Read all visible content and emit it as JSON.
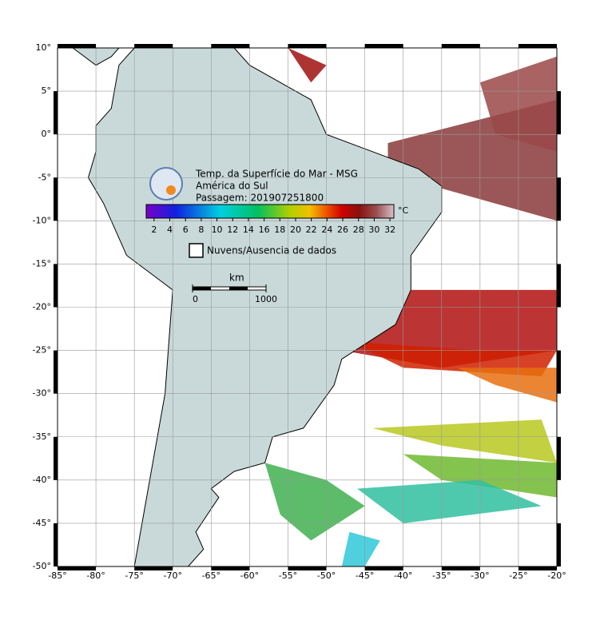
{
  "map": {
    "title": "Temp. da Superfície do Mar - MSG",
    "subtitle": "América do Sul",
    "pass": "Passagem: 201907251800",
    "colorbar": {
      "unit": "°C",
      "range": [
        1,
        32.5
      ],
      "ticks": [
        2,
        4,
        6,
        8,
        10,
        12,
        14,
        16,
        18,
        20,
        22,
        24,
        26,
        28,
        30,
        32
      ]
    },
    "legend": "Nuvens/Ausencia de dados",
    "scale": {
      "label": "km",
      "ticks": [
        0,
        1000
      ]
    },
    "lon_range": [
      -85,
      -20
    ],
    "lat_range": [
      10,
      -50
    ],
    "lon_ticks": [
      {
        "value": -85,
        "label": "-85°"
      },
      {
        "value": -80,
        "label": "-80°"
      },
      {
        "value": -75,
        "label": "-75°"
      },
      {
        "value": -70,
        "label": "-70°"
      },
      {
        "value": -65,
        "label": "-65°"
      },
      {
        "value": -60,
        "label": "-60°"
      },
      {
        "value": -55,
        "label": "-55°"
      },
      {
        "value": -50,
        "label": "-50°"
      },
      {
        "value": -45,
        "label": "-45°"
      },
      {
        "value": -40,
        "label": "-40°"
      },
      {
        "value": -35,
        "label": "-35°"
      },
      {
        "value": -30,
        "label": "-30°"
      },
      {
        "value": -25,
        "label": "-25°"
      },
      {
        "value": -20,
        "label": "-20°"
      }
    ],
    "lat_ticks": [
      {
        "value": 10,
        "label": "10°"
      },
      {
        "value": 5,
        "label": "5°"
      },
      {
        "value": 0,
        "label": "0°"
      },
      {
        "value": -5,
        "label": "-5°"
      },
      {
        "value": -10,
        "label": "-10°"
      },
      {
        "value": -15,
        "label": "-15°"
      },
      {
        "value": -20,
        "label": "-20°"
      },
      {
        "value": -25,
        "label": "-25°"
      },
      {
        "value": -30,
        "label": "-30°"
      },
      {
        "value": -35,
        "label": "-35°"
      },
      {
        "value": -40,
        "label": "-40°"
      },
      {
        "value": -45,
        "label": "-45°"
      },
      {
        "value": -50,
        "label": "-50°"
      }
    ]
  }
}
